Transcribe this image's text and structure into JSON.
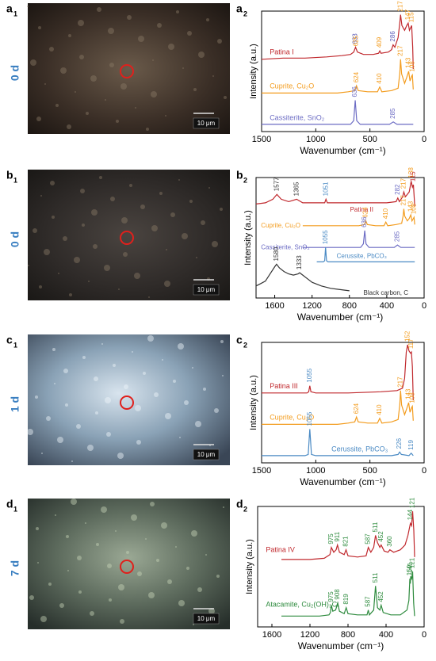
{
  "micrographs": [
    {
      "label": "a",
      "sub": "1",
      "day": "0 d",
      "scale": "10 μm"
    },
    {
      "label": "b",
      "sub": "1",
      "day": "0 d",
      "scale": "10 μm"
    },
    {
      "label": "c",
      "sub": "1",
      "day": "1 d",
      "scale": "10 μm"
    },
    {
      "label": "d",
      "sub": "1",
      "day": "7 d",
      "scale": "10 μm"
    }
  ],
  "chart_data": [
    {
      "type": "line",
      "panel": "a",
      "panel_sub": "2",
      "xlabel": "Wavenumber (cm⁻¹)",
      "ylabel": "Intensity (a.u.)",
      "xlim": [
        1500,
        0
      ],
      "xticks": [
        1500,
        1000,
        500,
        0
      ],
      "ylim": [
        0,
        100
      ],
      "series": [
        {
          "name": "Patina I",
          "color": "#c0282d",
          "x": [
            1500,
            1300,
            1100,
            900,
            760,
            680,
            650,
            633,
            615,
            560,
            470,
            420,
            409,
            398,
            330,
            300,
            286,
            270,
            240,
            225,
            217,
            205,
            180,
            160,
            147,
            135,
            125,
            115,
            105,
            100
          ],
          "values": [
            60,
            61,
            61,
            62,
            63,
            64,
            66,
            70,
            66,
            64,
            64,
            65,
            67,
            65,
            66,
            68,
            72,
            70,
            78,
            90,
            97,
            88,
            84,
            88,
            90,
            84,
            86,
            88,
            70,
            52
          ],
          "peaks": [
            633,
            625,
            409,
            286,
            217,
            147,
            115
          ],
          "peak_colors": [
            "#5a5ab8",
            "#f39c1e",
            "#f39c1e",
            "#5a5ab8",
            "#f39c1e",
            "#f39c1e",
            "#f39c1e"
          ]
        },
        {
          "name": "Cuprite, Cu₂O",
          "color": "#f39c1e",
          "x": [
            1500,
            1100,
            800,
            700,
            640,
            624,
            608,
            520,
            430,
            410,
            390,
            300,
            240,
            225,
            217,
            208,
            180,
            160,
            143,
            130,
            115,
            108,
            100
          ],
          "values": [
            32,
            32,
            32,
            33,
            34,
            38,
            34,
            33,
            33,
            37,
            33,
            34,
            36,
            48,
            60,
            48,
            40,
            45,
            50,
            42,
            46,
            47,
            35
          ],
          "peaks": [
            624,
            410,
            217,
            143,
            108
          ],
          "peak_colors": [
            "#f39c1e",
            "#f39c1e",
            "#f39c1e",
            "#f39c1e",
            "#f39c1e"
          ]
        },
        {
          "name": "Cassiterite, SnO₂",
          "color": "#6c6cc4",
          "x": [
            1500,
            1100,
            800,
            680,
            650,
            636,
            622,
            590,
            480,
            320,
            285,
            250,
            150,
            100
          ],
          "values": [
            6,
            6,
            6,
            6,
            9,
            26,
            9,
            6,
            6,
            6,
            8,
            6,
            6,
            6
          ],
          "peaks": [
            636,
            285
          ],
          "peak_colors": [
            "#6c6cc4",
            "#6c6cc4"
          ]
        }
      ]
    },
    {
      "type": "line",
      "panel": "b",
      "panel_sub": "2",
      "xlabel": "Wavenumber (cm⁻¹)",
      "ylabel": "Intensity (a.u.)",
      "xlim": [
        1800,
        0
      ],
      "xticks": [
        1600,
        1200,
        800,
        400,
        0
      ],
      "ylim": [
        0,
        100
      ],
      "series": [
        {
          "name": "Patina II",
          "color": "#c0282d",
          "x": [
            1800,
            1700,
            1620,
            1577,
            1530,
            1450,
            1365,
            1300,
            1150,
            1065,
            1051,
            1037,
            900,
            600,
            400,
            300,
            282,
            265,
            230,
            217,
            200,
            160,
            138,
            125,
            115,
            100
          ],
          "values": [
            78,
            79,
            82,
            86,
            82,
            80,
            82,
            79,
            79,
            79,
            82,
            79,
            79,
            79,
            79,
            80,
            83,
            80,
            84,
            88,
            84,
            88,
            97,
            92,
            94,
            76
          ],
          "peaks": [
            1577,
            1365,
            1051,
            282,
            217,
            138,
            115
          ],
          "peak_colors": [
            "#333333",
            "#333333",
            "#4a8ac4",
            "#6c6cc4",
            "#f39c1e",
            "#f39c1e",
            "#c0282d"
          ]
        },
        {
          "name": "Cuprite, Cu₂O",
          "color": "#f39c1e",
          "x": [
            1300,
            1100,
            800,
            700,
            640,
            624,
            608,
            520,
            430,
            410,
            390,
            300,
            240,
            225,
            217,
            208,
            180,
            160,
            143,
            130,
            115,
            108,
            100
          ],
          "values": [
            60,
            60,
            60,
            60,
            61,
            64,
            61,
            60,
            60,
            63,
            60,
            61,
            62,
            68,
            74,
            68,
            64,
            66,
            69,
            64,
            66,
            67,
            61
          ],
          "peaks": [
            624,
            410,
            217,
            143,
            108
          ],
          "peak_colors": [
            "#f39c1e",
            "#f39c1e",
            "#f39c1e",
            "#f39c1e",
            "#f39c1e"
          ]
        },
        {
          "name": "Cassiterite, SnO₂",
          "color": "#6c6cc4",
          "x": [
            1300,
            800,
            680,
            650,
            636,
            622,
            590,
            480,
            320,
            285,
            250,
            150,
            100
          ],
          "values": [
            42,
            42,
            42,
            45,
            56,
            45,
            42,
            42,
            42,
            44,
            42,
            42,
            42
          ],
          "peaks": [
            636,
            285
          ],
          "peak_colors": [
            "#6c6cc4",
            "#6c6cc4"
          ]
        },
        {
          "name": "Cerussite, PbCO₃",
          "color": "#4a8ac4",
          "x": [
            1150,
            1080,
            1065,
            1055,
            1045,
            1030,
            800,
            500,
            200,
            100
          ],
          "values": [
            30,
            30,
            31,
            42,
            31,
            30,
            30,
            30,
            30,
            30
          ],
          "peaks": [
            1055
          ],
          "peak_colors": [
            "#4a8ac4"
          ]
        },
        {
          "name": "Black carbon, C",
          "color": "#333333",
          "x": [
            1800,
            1750,
            1700,
            1650,
            1600,
            1580,
            1550,
            1500,
            1450,
            1400,
            1350,
            1333,
            1300,
            1250,
            1200,
            1100,
            1000,
            900,
            800
          ],
          "values": [
            10,
            12,
            14,
            20,
            26,
            28,
            25,
            22,
            20,
            19,
            20,
            21,
            19,
            16,
            13,
            10,
            8,
            7,
            6
          ],
          "peaks": [
            1580,
            1333
          ],
          "peak_colors": [
            "#333333",
            "#333333"
          ]
        }
      ]
    },
    {
      "type": "line",
      "panel": "c",
      "panel_sub": "2",
      "xlabel": "Wavenumber (cm⁻¹)",
      "ylabel": "Intensity (a.u.)",
      "xlim": [
        1500,
        0
      ],
      "xticks": [
        1500,
        1000,
        500,
        0
      ],
      "ylim": [
        0,
        100
      ],
      "series": [
        {
          "name": "Patina III",
          "color": "#c0282d",
          "x": [
            1500,
            1200,
            1080,
            1065,
            1055,
            1045,
            1000,
            700,
            400,
            250,
            200,
            180,
            165,
            152,
            140,
            125,
            117,
            108,
            100
          ],
          "values": [
            58,
            58,
            58,
            59,
            64,
            59,
            58,
            58,
            59,
            60,
            62,
            70,
            92,
            98,
            93,
            91,
            92,
            80,
            52
          ],
          "peaks": [
            1055,
            152,
            117
          ],
          "peak_colors": [
            "#4a8ac4",
            "#f39c1e",
            "#f39c1e"
          ]
        },
        {
          "name": "Cuprite, Cu₂O",
          "color": "#f39c1e",
          "x": [
            1500,
            1100,
            800,
            700,
            640,
            624,
            608,
            520,
            430,
            410,
            390,
            300,
            240,
            225,
            217,
            208,
            180,
            160,
            143,
            130,
            115,
            108,
            100
          ],
          "values": [
            32,
            32,
            32,
            33,
            34,
            38,
            34,
            33,
            33,
            37,
            33,
            34,
            36,
            48,
            60,
            48,
            40,
            45,
            50,
            42,
            46,
            47,
            35
          ],
          "peaks": [
            624,
            410,
            217,
            143,
            108
          ],
          "peak_colors": [
            "#f39c1e",
            "#f39c1e",
            "#f39c1e",
            "#f39c1e",
            "#f39c1e"
          ]
        },
        {
          "name": "Cerussite, PbCO₃",
          "color": "#4a8ac4",
          "x": [
            1500,
            1100,
            1070,
            1055,
            1040,
            1000,
            600,
            300,
            240,
            226,
            210,
            140,
            119,
            100
          ],
          "values": [
            6,
            6,
            7,
            28,
            7,
            6,
            6,
            6,
            7,
            9,
            7,
            6,
            8,
            6
          ],
          "peaks": [
            1055,
            226,
            119
          ],
          "peak_colors": [
            "#4a8ac4",
            "#4a8ac4",
            "#4a8ac4"
          ]
        }
      ]
    },
    {
      "type": "line",
      "panel": "d",
      "panel_sub": "2",
      "xlabel": "Wavenumber (cm⁻¹)",
      "ylabel": "Intensity (a.u.)",
      "xlim": [
        1750,
        0
      ],
      "xticks": [
        1600,
        1200,
        800,
        400,
        0
      ],
      "ylim": [
        0,
        100
      ],
      "series": [
        {
          "name": "Patina IV",
          "color": "#c0282d",
          "x": [
            1500,
            1200,
            1050,
            990,
            975,
            950,
            925,
            911,
            890,
            840,
            821,
            800,
            700,
            610,
            587,
            560,
            530,
            511,
            490,
            465,
            452,
            420,
            380,
            360,
            320,
            250,
            200,
            170,
            144,
            132,
            121,
            108,
            100
          ],
          "values": [
            56,
            56,
            57,
            60,
            66,
            62,
            64,
            68,
            62,
            60,
            64,
            59,
            58,
            59,
            66,
            62,
            66,
            76,
            70,
            66,
            68,
            63,
            62,
            64,
            62,
            64,
            68,
            76,
            86,
            84,
            96,
            80,
            58
          ],
          "peaks": [
            975,
            911,
            821,
            587,
            511,
            452,
            360,
            144,
            121
          ],
          "peak_colors": [
            "#2e8b3e",
            "#2e8b3e",
            "#2e8b3e",
            "#2e8b3e",
            "#2e8b3e",
            "#2e8b3e",
            "#2e8b3e",
            "#2e8b3e",
            "#2e8b3e"
          ]
        },
        {
          "name": "Atacamite, Cu₂(OH)₃Cl",
          "color": "#2e8b3e",
          "x": [
            1500,
            1100,
            1000,
            985,
            975,
            960,
            930,
            908,
            890,
            840,
            819,
            800,
            700,
            600,
            587,
            575,
            530,
            511,
            490,
            465,
            452,
            430,
            350,
            250,
            180,
            160,
            150,
            145,
            141,
            130,
            121,
            110,
            100
          ],
          "values": [
            9,
            9,
            10,
            12,
            18,
            13,
            14,
            20,
            13,
            11,
            16,
            11,
            10,
            10,
            14,
            10,
            14,
            34,
            16,
            14,
            18,
            12,
            10,
            10,
            14,
            22,
            40,
            36,
            42,
            40,
            46,
            20,
            9
          ],
          "peaks": [
            975,
            908,
            819,
            587,
            511,
            452,
            150,
            141,
            121
          ],
          "peak_colors": [
            "#2e8b3e",
            "#2e8b3e",
            "#2e8b3e",
            "#2e8b3e",
            "#2e8b3e",
            "#2e8b3e",
            "#2e8b3e",
            "#2e8b3e",
            "#2e8b3e"
          ]
        }
      ]
    }
  ]
}
